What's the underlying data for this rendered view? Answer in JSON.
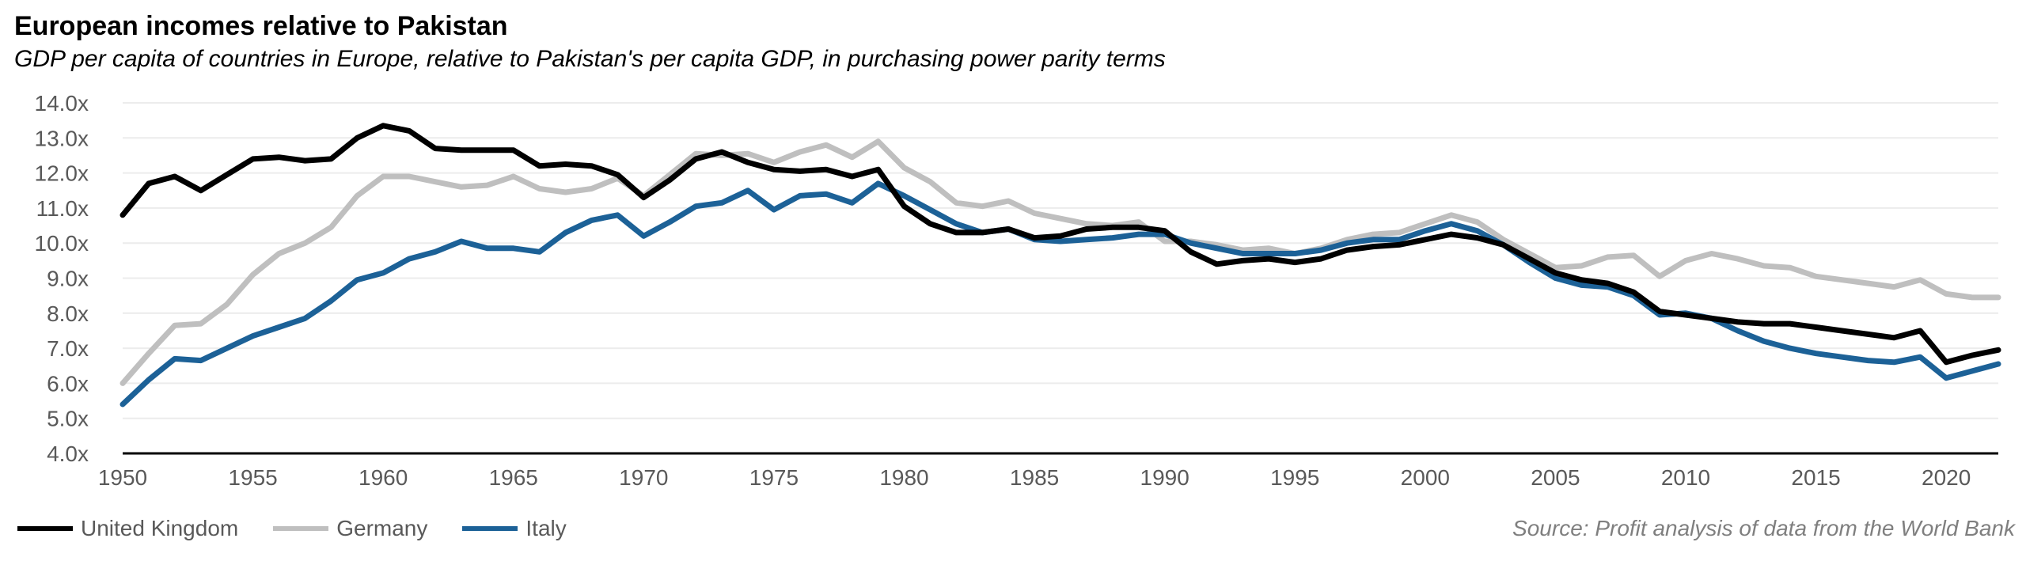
{
  "chart_data": {
    "type": "line",
    "title": "European incomes relative to Pakistan",
    "subtitle": "GDP per capita of countries in Europe, relative to Pakistan's per capita GDP, in purchasing power parity terms",
    "source": "Source: Profit analysis of data from the World Bank",
    "xlim": [
      1950,
      2022
    ],
    "ylim": [
      4,
      14
    ],
    "x_ticks": [
      1950,
      1955,
      1960,
      1965,
      1970,
      1975,
      1980,
      1985,
      1990,
      1995,
      2000,
      2005,
      2010,
      2015,
      2020
    ],
    "y_ticks": [
      "4.0x",
      "5.0x",
      "6.0x",
      "7.0x",
      "8.0x",
      "9.0x",
      "10.0x",
      "11.0x",
      "12.0x",
      "13.0x",
      "14.0x"
    ],
    "grid": "horizontal",
    "legend_position": "bottom-left",
    "x": [
      1950,
      1951,
      1952,
      1953,
      1954,
      1955,
      1956,
      1957,
      1958,
      1959,
      1960,
      1961,
      1962,
      1963,
      1964,
      1965,
      1966,
      1967,
      1968,
      1969,
      1970,
      1971,
      1972,
      1973,
      1974,
      1975,
      1976,
      1977,
      1978,
      1979,
      1980,
      1981,
      1982,
      1983,
      1984,
      1985,
      1986,
      1987,
      1988,
      1989,
      1990,
      1991,
      1992,
      1993,
      1994,
      1995,
      1996,
      1997,
      1998,
      1999,
      2000,
      2001,
      2002,
      2003,
      2004,
      2005,
      2006,
      2007,
      2008,
      2009,
      2010,
      2011,
      2012,
      2013,
      2014,
      2015,
      2016,
      2017,
      2018,
      2019,
      2020,
      2021,
      2022
    ],
    "series": [
      {
        "name": "United Kingdom",
        "color": "#000000",
        "values": [
          10.8,
          11.7,
          11.9,
          11.5,
          11.95,
          12.4,
          12.45,
          12.35,
          12.4,
          13.0,
          13.35,
          13.2,
          12.7,
          12.65,
          12.65,
          12.65,
          12.2,
          12.25,
          12.2,
          11.95,
          11.3,
          11.8,
          12.4,
          12.6,
          12.3,
          12.1,
          12.05,
          12.1,
          11.9,
          12.1,
          11.05,
          10.55,
          10.3,
          10.3,
          10.4,
          10.15,
          10.2,
          10.4,
          10.45,
          10.45,
          10.35,
          9.75,
          9.4,
          9.5,
          9.55,
          9.45,
          9.55,
          9.8,
          9.9,
          9.95,
          10.1,
          10.25,
          10.15,
          9.95,
          9.55,
          9.15,
          8.95,
          8.85,
          8.6,
          8.05,
          7.95,
          7.85,
          7.75,
          7.7,
          7.7,
          7.6,
          7.5,
          7.4,
          7.3,
          7.5,
          6.6,
          6.8,
          6.95
        ]
      },
      {
        "name": "Germany",
        "color": "#bfbfbf",
        "values": [
          6.0,
          6.85,
          7.65,
          7.7,
          8.25,
          9.1,
          9.7,
          10.0,
          10.45,
          11.35,
          11.9,
          11.9,
          11.75,
          11.6,
          11.65,
          11.9,
          11.55,
          11.45,
          11.55,
          11.85,
          11.35,
          11.95,
          12.55,
          12.5,
          12.55,
          12.3,
          12.6,
          12.8,
          12.45,
          12.9,
          12.15,
          11.75,
          11.15,
          11.05,
          11.2,
          10.85,
          10.7,
          10.55,
          10.5,
          10.6,
          10.05,
          10.05,
          9.95,
          9.8,
          9.85,
          9.7,
          9.85,
          10.1,
          10.25,
          10.3,
          10.55,
          10.8,
          10.6,
          10.1,
          9.7,
          9.3,
          9.35,
          9.6,
          9.65,
          9.05,
          9.5,
          9.7,
          9.55,
          9.35,
          9.3,
          9.05,
          8.95,
          8.85,
          8.75,
          8.95,
          8.55,
          8.45,
          8.45
        ]
      },
      {
        "name": "Italy",
        "color": "#1c6197",
        "values": [
          5.4,
          6.1,
          6.7,
          6.65,
          7.0,
          7.35,
          7.6,
          7.85,
          8.35,
          8.95,
          9.15,
          9.55,
          9.75,
          10.05,
          9.85,
          9.85,
          9.75,
          10.3,
          10.65,
          10.8,
          10.2,
          10.6,
          11.05,
          11.15,
          11.5,
          10.95,
          11.35,
          11.4,
          11.15,
          11.7,
          11.35,
          10.95,
          10.55,
          10.3,
          10.4,
          10.1,
          10.05,
          10.1,
          10.15,
          10.25,
          10.25,
          10.0,
          9.85,
          9.7,
          9.7,
          9.7,
          9.8,
          10.0,
          10.1,
          10.1,
          10.35,
          10.55,
          10.35,
          9.95,
          9.45,
          9.0,
          8.8,
          8.75,
          8.5,
          7.95,
          8.0,
          7.85,
          7.5,
          7.2,
          7.0,
          6.85,
          6.75,
          6.65,
          6.6,
          6.75,
          6.15,
          6.35,
          6.55
        ]
      }
    ]
  }
}
